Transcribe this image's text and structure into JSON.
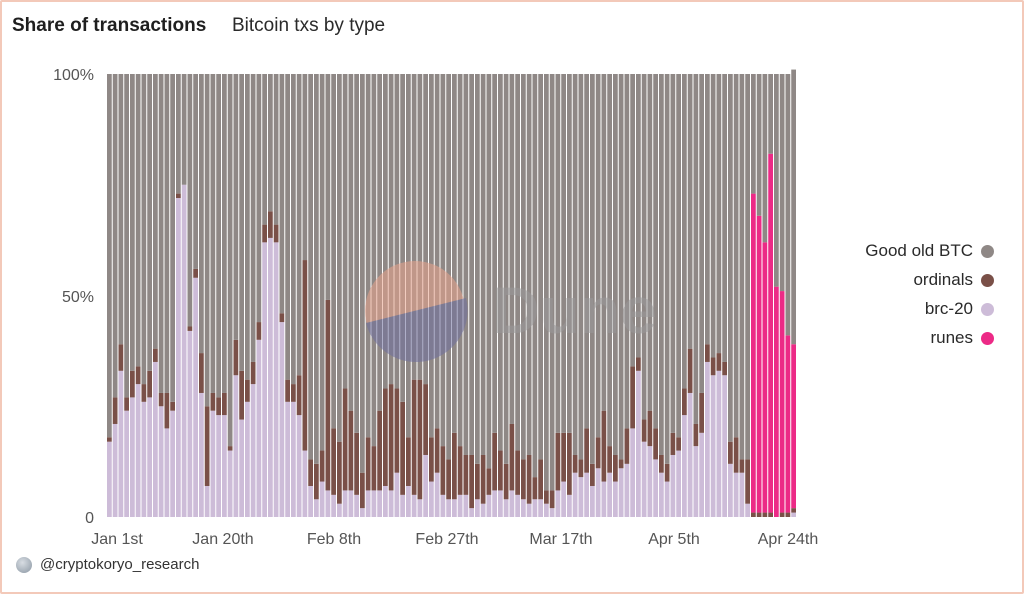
{
  "header": {
    "title": "Share of transactions",
    "subtitle": "Bitcoin txs by type"
  },
  "footer": {
    "author": "@cryptokoryo_research"
  },
  "watermark": {
    "text": "Dune"
  },
  "colors": {
    "good_old_btc": "#8f8886",
    "ordinals": "#7a5048",
    "brc20": "#cdbcd8",
    "runes": "#ec2a86"
  },
  "legend": [
    {
      "name": "Good old BTC",
      "color": "#8f8886"
    },
    {
      "name": "ordinals",
      "color": "#7a5048"
    },
    {
      "name": "brc-20",
      "color": "#cdbcd8"
    },
    {
      "name": "runes",
      "color": "#ec2a86"
    }
  ],
  "chart_data": {
    "type": "bar",
    "stacked": true,
    "normalized": true,
    "ylim": [
      0,
      1
    ],
    "y_ticks": [
      "0",
      "50%",
      "100%"
    ],
    "x_tick_labels": [
      "Jan 1st",
      "Jan 20th",
      "Feb 8th",
      "Feb 27th",
      "Mar 17th",
      "Apr 5th",
      "Apr 24th"
    ],
    "legend_position": "right",
    "grid": false,
    "date_range": [
      "2024-01-01",
      "2024-04-29"
    ],
    "series": [
      {
        "name": "brc-20",
        "values": [
          0.17,
          0.21,
          0.33,
          0.24,
          0.27,
          0.3,
          0.26,
          0.27,
          0.35,
          0.25,
          0.2,
          0.24,
          0.72,
          0.75,
          0.42,
          0.54,
          0.28,
          0.07,
          0.24,
          0.23,
          0.23,
          0.15,
          0.32,
          0.22,
          0.26,
          0.3,
          0.4,
          0.62,
          0.63,
          0.62,
          0.44,
          0.26,
          0.26,
          0.23,
          0.15,
          0.07,
          0.04,
          0.08,
          0.06,
          0.05,
          0.03,
          0.06,
          0.06,
          0.05,
          0.02,
          0.06,
          0.06,
          0.06,
          0.07,
          0.06,
          0.1,
          0.05,
          0.07,
          0.05,
          0.04,
          0.14,
          0.08,
          0.1,
          0.05,
          0.04,
          0.04,
          0.05,
          0.05,
          0.02,
          0.04,
          0.03,
          0.05,
          0.06,
          0.06,
          0.04,
          0.06,
          0.05,
          0.04,
          0.03,
          0.04,
          0.04,
          0.03,
          0.02,
          0.06,
          0.08,
          0.05,
          0.1,
          0.09,
          0.1,
          0.07,
          0.11,
          0.08,
          0.1,
          0.08,
          0.11,
          0.12,
          0.2,
          0.33,
          0.17,
          0.16,
          0.13,
          0.1,
          0.08,
          0.14,
          0.15,
          0.23,
          0.28,
          0.16,
          0.19,
          0.35,
          0.32,
          0.33,
          0.32,
          0.12,
          0.1,
          0.1,
          0.03,
          0.0,
          0.0,
          0.0,
          0.0,
          0.0,
          0.0,
          0.0,
          0.01
        ]
      },
      {
        "name": "ordinals",
        "values": [
          0.01,
          0.06,
          0.06,
          0.03,
          0.06,
          0.04,
          0.04,
          0.06,
          0.03,
          0.03,
          0.08,
          0.02,
          0.01,
          0.0,
          0.01,
          0.02,
          0.09,
          0.18,
          0.04,
          0.04,
          0.05,
          0.01,
          0.08,
          0.11,
          0.05,
          0.05,
          0.04,
          0.04,
          0.06,
          0.04,
          0.02,
          0.05,
          0.04,
          0.09,
          0.43,
          0.06,
          0.08,
          0.07,
          0.43,
          0.15,
          0.14,
          0.23,
          0.18,
          0.14,
          0.08,
          0.12,
          0.1,
          0.18,
          0.22,
          0.24,
          0.19,
          0.21,
          0.11,
          0.26,
          0.27,
          0.16,
          0.1,
          0.1,
          0.11,
          0.09,
          0.15,
          0.11,
          0.09,
          0.12,
          0.08,
          0.11,
          0.06,
          0.13,
          0.09,
          0.08,
          0.15,
          0.1,
          0.09,
          0.11,
          0.05,
          0.09,
          0.03,
          0.04,
          0.13,
          0.11,
          0.14,
          0.04,
          0.04,
          0.1,
          0.05,
          0.07,
          0.16,
          0.06,
          0.06,
          0.02,
          0.08,
          0.14,
          0.03,
          0.05,
          0.08,
          0.07,
          0.04,
          0.04,
          0.05,
          0.03,
          0.06,
          0.1,
          0.05,
          0.09,
          0.04,
          0.04,
          0.04,
          0.03,
          0.05,
          0.08,
          0.03,
          0.1,
          0.01,
          0.01,
          0.01,
          0.01,
          0.0,
          0.01,
          0.01,
          0.01
        ]
      },
      {
        "name": "runes",
        "values": [
          0.0,
          0.0,
          0.0,
          0.0,
          0.0,
          0.0,
          0.0,
          0.0,
          0.0,
          0.0,
          0.0,
          0.0,
          0.0,
          0.0,
          0.0,
          0.0,
          0.0,
          0.0,
          0.0,
          0.0,
          0.0,
          0.0,
          0.0,
          0.0,
          0.0,
          0.0,
          0.0,
          0.0,
          0.0,
          0.0,
          0.0,
          0.0,
          0.0,
          0.0,
          0.0,
          0.0,
          0.0,
          0.0,
          0.0,
          0.0,
          0.0,
          0.0,
          0.0,
          0.0,
          0.0,
          0.0,
          0.0,
          0.0,
          0.0,
          0.0,
          0.0,
          0.0,
          0.0,
          0.0,
          0.0,
          0.0,
          0.0,
          0.0,
          0.0,
          0.0,
          0.0,
          0.0,
          0.0,
          0.0,
          0.0,
          0.0,
          0.0,
          0.0,
          0.0,
          0.0,
          0.0,
          0.0,
          0.0,
          0.0,
          0.0,
          0.0,
          0.0,
          0.0,
          0.0,
          0.0,
          0.0,
          0.0,
          0.0,
          0.0,
          0.0,
          0.0,
          0.0,
          0.0,
          0.0,
          0.0,
          0.0,
          0.0,
          0.0,
          0.0,
          0.0,
          0.0,
          0.0,
          0.0,
          0.0,
          0.0,
          0.0,
          0.0,
          0.0,
          0.0,
          0.0,
          0.0,
          0.0,
          0.0,
          0.0,
          0.0,
          0.0,
          0.0,
          0.72,
          0.67,
          0.61,
          0.81,
          0.52,
          0.5,
          0.4,
          0.37
        ]
      },
      {
        "name": "Good old BTC",
        "values": [
          0.82,
          0.73,
          0.61,
          0.73,
          0.67,
          0.66,
          0.7,
          0.67,
          0.62,
          0.72,
          0.72,
          0.74,
          0.27,
          0.25,
          0.57,
          0.44,
          0.63,
          0.75,
          0.72,
          0.73,
          0.72,
          0.84,
          0.6,
          0.67,
          0.69,
          0.65,
          0.56,
          0.34,
          0.31,
          0.34,
          0.54,
          0.69,
          0.7,
          0.68,
          0.42,
          0.87,
          0.88,
          0.85,
          0.51,
          0.8,
          0.83,
          0.71,
          0.76,
          0.81,
          0.9,
          0.82,
          0.84,
          0.76,
          0.71,
          0.7,
          0.71,
          0.74,
          0.82,
          0.69,
          0.69,
          0.7,
          0.82,
          0.8,
          0.84,
          0.87,
          0.81,
          0.84,
          0.86,
          0.86,
          0.88,
          0.86,
          0.89,
          0.81,
          0.85,
          0.88,
          0.79,
          0.85,
          0.87,
          0.86,
          0.91,
          0.87,
          0.94,
          0.94,
          0.81,
          0.81,
          0.81,
          0.86,
          0.87,
          0.8,
          0.88,
          0.82,
          0.76,
          0.84,
          0.86,
          0.87,
          0.8,
          0.66,
          0.64,
          0.78,
          0.76,
          0.8,
          0.86,
          0.88,
          0.81,
          0.82,
          0.71,
          0.62,
          0.79,
          0.72,
          0.61,
          0.64,
          0.63,
          0.65,
          0.83,
          0.82,
          0.87,
          0.87,
          0.27,
          0.32,
          0.38,
          0.18,
          0.48,
          0.49,
          0.59,
          0.62
        ]
      }
    ]
  }
}
